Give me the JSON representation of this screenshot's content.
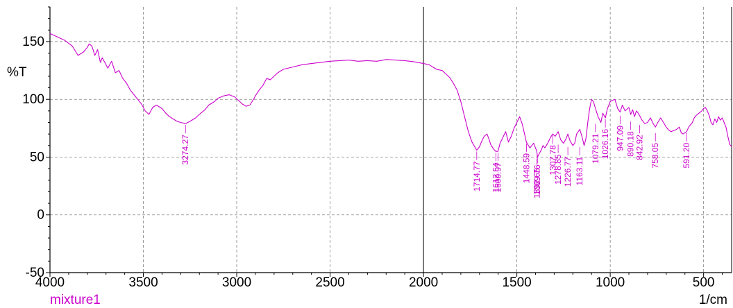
{
  "colors": {
    "spectrum": "#cc00cc",
    "axis": "#000000",
    "grid": "#808080"
  },
  "chart_data": {
    "type": "line",
    "title": "",
    "sample_name": "mixture1",
    "x_unit": "1/cm",
    "y_unit": "%T",
    "xlim": [
      4000,
      350
    ],
    "ylim": [
      -50,
      180
    ],
    "x_reversed": true,
    "grid": true,
    "x_ticks": [
      4000,
      3500,
      3000,
      2500,
      2000,
      1500,
      1000,
      500
    ],
    "y_ticks": [
      -50,
      0,
      50,
      100,
      150
    ],
    "series": [
      {
        "x": [
          4000,
          3960,
          3920,
          3880,
          3850,
          3820,
          3800,
          3790,
          3775,
          3760,
          3745,
          3730,
          3720,
          3700,
          3690,
          3670,
          3650,
          3630,
          3610,
          3590,
          3570,
          3550,
          3530,
          3510,
          3490,
          3470,
          3450,
          3430,
          3400,
          3380,
          3360,
          3340,
          3320,
          3300,
          3274,
          3250,
          3220,
          3200,
          3170,
          3150,
          3120,
          3100,
          3070,
          3040,
          3010,
          2990,
          2970,
          2950,
          2930,
          2910,
          2900,
          2880,
          2860,
          2840,
          2820,
          2800,
          2780,
          2750,
          2700,
          2650,
          2600,
          2550,
          2500,
          2450,
          2400,
          2350,
          2300,
          2250,
          2200,
          2150,
          2100,
          2050,
          2000,
          1970,
          1950,
          1930,
          1900,
          1880,
          1860,
          1840,
          1820,
          1800,
          1780,
          1760,
          1740,
          1715,
          1700,
          1690,
          1675,
          1660,
          1650,
          1640,
          1625,
          1613,
          1601,
          1590,
          1575,
          1560,
          1545,
          1530,
          1515,
          1500,
          1485,
          1470,
          1449,
          1430,
          1410,
          1393,
          1390,
          1380,
          1370,
          1360,
          1350,
          1335,
          1320,
          1308,
          1295,
          1279,
          1265,
          1250,
          1236,
          1227,
          1215,
          1200,
          1190,
          1180,
          1163,
          1150,
          1140,
          1130,
          1120,
          1110,
          1100,
          1090,
          1079,
          1065,
          1050,
          1040,
          1026,
          1015,
          1000,
          990,
          975,
          960,
          947,
          935,
          920,
          900,
          890,
          880,
          870,
          860,
          850,
          843,
          830,
          815,
          800,
          785,
          770,
          758,
          745,
          730,
          715,
          700,
          690,
          675,
          660,
          645,
          630,
          620,
          610,
          591,
          580,
          570,
          560,
          550,
          540,
          525,
          510,
          500,
          490,
          480,
          470,
          460,
          450,
          440,
          430,
          420,
          410,
          400,
          390,
          380,
          370,
          360,
          350
        ],
        "y": [
          157,
          154,
          151,
          146,
          138,
          141,
          145,
          148,
          146,
          138,
          143,
          132,
          136,
          130,
          127,
          133,
          123,
          125,
          118,
          114,
          108,
          104,
          100,
          96,
          90,
          87,
          93,
          95,
          92,
          88,
          85,
          83,
          81,
          80,
          79,
          81,
          84,
          87,
          91,
          95,
          98,
          101,
          103,
          104,
          102,
          99,
          96,
          94,
          95,
          100,
          103,
          108,
          112,
          118,
          117,
          120,
          123,
          126,
          128,
          130,
          131,
          132,
          133,
          133.5,
          134,
          133,
          133.5,
          133,
          134.5,
          134,
          133.5,
          132.5,
          131,
          130,
          128,
          126,
          125,
          122,
          119,
          114,
          108,
          98,
          85,
          72,
          63,
          56,
          59,
          63,
          68,
          70,
          66,
          61,
          57,
          55,
          55,
          62,
          67,
          72,
          63,
          68,
          75,
          80,
          85,
          78,
          63,
          58,
          62,
          55,
          50,
          53,
          56,
          60,
          58,
          62,
          67,
          70,
          68,
          72,
          65,
          62,
          66,
          70,
          64,
          60,
          62,
          70,
          74,
          67,
          60,
          66,
          80,
          92,
          100,
          98,
          92,
          85,
          80,
          88,
          84,
          92,
          98,
          99,
          100,
          92,
          89,
          95,
          90,
          93,
          87,
          91,
          85,
          90,
          88,
          86,
          82,
          79,
          80,
          84,
          79,
          76,
          80,
          84,
          80,
          76,
          74,
          72,
          73,
          74,
          76,
          71,
          70,
          72,
          76,
          78,
          80,
          84,
          86,
          88,
          90,
          92,
          93,
          90,
          86,
          80,
          78,
          83,
          80,
          85,
          82,
          84,
          80,
          76,
          68,
          61,
          59
        ]
      }
    ],
    "peak_labels": [
      {
        "x": 3274.27,
        "y": 79,
        "label": "3274.27"
      },
      {
        "x": 1714.77,
        "y": 56,
        "label": "1714.77"
      },
      {
        "x": 1612.54,
        "y": 55,
        "label": "1612.54"
      },
      {
        "x": 1600.97,
        "y": 55,
        "label": "1600.97"
      },
      {
        "x": 1448.59,
        "y": 63,
        "label": "1448.59"
      },
      {
        "x": 1392.65,
        "y": 50,
        "label": "1392.65"
      },
      {
        "x": 1389.76,
        "y": 53,
        "label": "1389.76"
      },
      {
        "x": 1307.78,
        "y": 70,
        "label": "1307.78"
      },
      {
        "x": 1278.85,
        "y": 62,
        "label": "1278.85"
      },
      {
        "x": 1226.77,
        "y": 60,
        "label": "1226.77"
      },
      {
        "x": 1163.11,
        "y": 60,
        "label": "1163.11"
      },
      {
        "x": 1079.21,
        "y": 80,
        "label": "1079.21"
      },
      {
        "x": 1026.16,
        "y": 84,
        "label": "1026.16"
      },
      {
        "x": 947.09,
        "y": 87,
        "label": "947.09"
      },
      {
        "x": 890.18,
        "y": 82,
        "label": "890.18"
      },
      {
        "x": 842.92,
        "y": 79,
        "label": "842.92"
      },
      {
        "x": 758.05,
        "y": 72,
        "label": "758.05"
      },
      {
        "x": 591.2,
        "y": 72,
        "label": "591.20"
      }
    ]
  }
}
